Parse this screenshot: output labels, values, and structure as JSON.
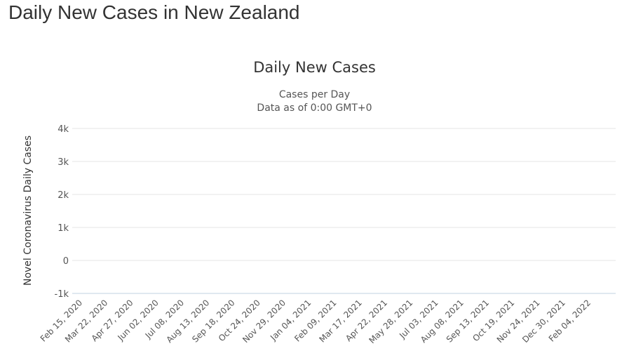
{
  "page": {
    "title": "Daily New Cases in New Zealand"
  },
  "chart_data": {
    "type": "bar",
    "title": "Daily New Cases",
    "subtitle": [
      "Cases per Day",
      "Data as of 0:00 GMT+0"
    ],
    "xlabel": "",
    "ylabel": "Novel Coronavirus Daily Cases",
    "ylim": [
      -1000,
      4000
    ],
    "yticks": [
      -1000,
      0,
      1000,
      2000,
      3000,
      4000
    ],
    "ytick_labels": [
      "-1k",
      "0",
      "1k",
      "2k",
      "3k",
      "4k"
    ],
    "xtick_labels": [
      "Feb 15, 2020",
      "Mar 22, 2020",
      "Apr 27, 2020",
      "Jun 02, 2020",
      "Jul 08, 2020",
      "Aug 13, 2020",
      "Sep 18, 2020",
      "Oct 24, 2020",
      "Nov 29, 2020",
      "Jan 04, 2021",
      "Feb 09, 2021",
      "Mar 17, 2021",
      "Apr 22, 2021",
      "May 28, 2021",
      "Jul 03, 2021",
      "Aug 08, 2021",
      "Sep 13, 2021",
      "Oct 19, 2021",
      "Nov 24, 2021",
      "Dec 30, 2021",
      "Feb 04, 2022"
    ],
    "grid": true,
    "legend": "none",
    "bar_color": "#999999",
    "series": [
      {
        "values": [
          0,
          0,
          0,
          0,
          0,
          0,
          0,
          0,
          0,
          0,
          0,
          0,
          0,
          0,
          0,
          0,
          0,
          0,
          0,
          0,
          0,
          0,
          0,
          0,
          0,
          0,
          0,
          0,
          0,
          0,
          0,
          0,
          0,
          0,
          0,
          0,
          0,
          0,
          0,
          0,
          0,
          0,
          0,
          0,
          0,
          0,
          0,
          0,
          0,
          0,
          0,
          0,
          0,
          0,
          0,
          0,
          0,
          0,
          0,
          0,
          0,
          0,
          0,
          0,
          0,
          0,
          0,
          0,
          0,
          0,
          0,
          0,
          0,
          0,
          0,
          0,
          0,
          0,
          0,
          0,
          0,
          0,
          0,
          0,
          0,
          0,
          0,
          0,
          0,
          0,
          0,
          0,
          0,
          0,
          0,
          0,
          0,
          0,
          0,
          0,
          0,
          0,
          0,
          0,
          0,
          0,
          0,
          0,
          0,
          0,
          0,
          0,
          0,
          0,
          0,
          0,
          0,
          0,
          0,
          0,
          0,
          0,
          0,
          0,
          0,
          0,
          0,
          0,
          0,
          0,
          0,
          0,
          0,
          0,
          0,
          0,
          0,
          0,
          0,
          0,
          0,
          0,
          0,
          0,
          0,
          0,
          0,
          0,
          0,
          0,
          0,
          0,
          0,
          0,
          0,
          0,
          0,
          0,
          0,
          0,
          0,
          0,
          0,
          0,
          0,
          0,
          0,
          0,
          0,
          0,
          0,
          0,
          0,
          0,
          0,
          0,
          0,
          0,
          0,
          0,
          0,
          0,
          0,
          0,
          0,
          0,
          0,
          0,
          0,
          0,
          0,
          0,
          0,
          0,
          0,
          0,
          0,
          0,
          0,
          0,
          0,
          0,
          0,
          0,
          0,
          0,
          0,
          0,
          0,
          0,
          0,
          0,
          0,
          0,
          0,
          0,
          0,
          0,
          0,
          0,
          0,
          0,
          0,
          0,
          0,
          0,
          0,
          0,
          0,
          0,
          0,
          0,
          0,
          0,
          0,
          0,
          0,
          0,
          0,
          0,
          0,
          0,
          0,
          0,
          0,
          0,
          0,
          0,
          0,
          0,
          0,
          0,
          0,
          0,
          0,
          0,
          0,
          0,
          0,
          0,
          0,
          0,
          0,
          0,
          0,
          0,
          0,
          0,
          0,
          0,
          0,
          0,
          0,
          0,
          0,
          0,
          0,
          0,
          0,
          0,
          0,
          0,
          0,
          0,
          0,
          0,
          0,
          0,
          0,
          0,
          0,
          0,
          0,
          0,
          0,
          0,
          0,
          0,
          0,
          0,
          0,
          0,
          0,
          0,
          0,
          0,
          0,
          0,
          0,
          0,
          0,
          0,
          0,
          0,
          0,
          0,
          0,
          0,
          0,
          0,
          0,
          0,
          0,
          0,
          0,
          0,
          0,
          0,
          0,
          0,
          0,
          0,
          0,
          0,
          0,
          0,
          0,
          0,
          0,
          0,
          0,
          0,
          0,
          0,
          0,
          0,
          0,
          0,
          0,
          0,
          0,
          0,
          0,
          0,
          0,
          0,
          0,
          0,
          0,
          0,
          0,
          0,
          0,
          0,
          0,
          0,
          0,
          0,
          0,
          0,
          0,
          0,
          0,
          0,
          0,
          0,
          0,
          0,
          0,
          0,
          0,
          0,
          0,
          0,
          0,
          0,
          0,
          0,
          0,
          0,
          0,
          0,
          0,
          0,
          0,
          0,
          0,
          0,
          0,
          0,
          0,
          0,
          0,
          0,
          0,
          0,
          0,
          0,
          0,
          0,
          0,
          0,
          0,
          0,
          0,
          0,
          0,
          0,
          0,
          0,
          0,
          0,
          0,
          0,
          0,
          0,
          0,
          0,
          0,
          0,
          0,
          0,
          0,
          0,
          0,
          0,
          0,
          0,
          0,
          0,
          0,
          0,
          0,
          0,
          0,
          0,
          0,
          0,
          0,
          0,
          0,
          0,
          0,
          0,
          0,
          0,
          0,
          0,
          0,
          0,
          0,
          0,
          0,
          0,
          0,
          0,
          0,
          0,
          0,
          0,
          0,
          0,
          0,
          0,
          0,
          0,
          0,
          0,
          0,
          0,
          0,
          0,
          0,
          0,
          0,
          0,
          0,
          0,
          0,
          0,
          0,
          0,
          0,
          0,
          0,
          0,
          0,
          0,
          0,
          0,
          0,
          0,
          0,
          0,
          0,
          0,
          0,
          0,
          0,
          0,
          0,
          0,
          0,
          0,
          0,
          0,
          0,
          0,
          0,
          0,
          0,
          0,
          0,
          0,
          0,
          0,
          0,
          0,
          0,
          0,
          0,
          0,
          0,
          0,
          0,
          0,
          0,
          0,
          0,
          0,
          0,
          0,
          0,
          0,
          0,
          0,
          0,
          0,
          0,
          0,
          0,
          0,
          0,
          0,
          0,
          0,
          0,
          0,
          0,
          0,
          0,
          0,
          0,
          0,
          0,
          0,
          0,
          0,
          0,
          0,
          0,
          0,
          0,
          0,
          0,
          0,
          0,
          0,
          0,
          0,
          0,
          0,
          0,
          0,
          0,
          0,
          0,
          0,
          0,
          0,
          0,
          0,
          0,
          0,
          0,
          0,
          0,
          0,
          0,
          0,
          0,
          0,
          0,
          0,
          0,
          0,
          0,
          0,
          0,
          0,
          0,
          0,
          0,
          0,
          0,
          0,
          0,
          0,
          0,
          0,
          0,
          0,
          0,
          0,
          0,
          0,
          0,
          0,
          0,
          0,
          0,
          0,
          0,
          0,
          0,
          0,
          0,
          0,
          0,
          0,
          0,
          0,
          0,
          0,
          0,
          0,
          0,
          0,
          0,
          0,
          0,
          0,
          0,
          0,
          0,
          0,
          0,
          0,
          0,
          0,
          0,
          0,
          0,
          0,
          0,
          0,
          0,
          0,
          0,
          0,
          0,
          0,
          0,
          0,
          0,
          0,
          0,
          0,
          0,
          0,
          0,
          0,
          0,
          0,
          0,
          0,
          0,
          0,
          0,
          0,
          0,
          0,
          0,
          0,
          0,
          0,
          0,
          0,
          0,
          0,
          0,
          0,
          0,
          0,
          0,
          0,
          0,
          0,
          0,
          0,
          0,
          0,
          0,
          0,
          0,
          0,
          0,
          0,
          0,
          0,
          0,
          0,
          0,
          0,
          0,
          0,
          0,
          0,
          0,
          0,
          0,
          0,
          0,
          0,
          0,
          0,
          0,
          0,
          0,
          0,
          0,
          0,
          0,
          0,
          0,
          0,
          0,
          0,
          0,
          0,
          0,
          0,
          0,
          0,
          0,
          0,
          0,
          0,
          0,
          0,
          0,
          0,
          0,
          0,
          0,
          0,
          0,
          0,
          0,
          0,
          0,
          0,
          0,
          0,
          0,
          0,
          0,
          0,
          0,
          0,
          0,
          0,
          0,
          0,
          0,
          0,
          0,
          0,
          0,
          0,
          0,
          0,
          0,
          0,
          0,
          0,
          0,
          0,
          0,
          0,
          0,
          0,
          0,
          0,
          0,
          0,
          0,
          0,
          0,
          0,
          0,
          0,
          0,
          0,
          0,
          0,
          0,
          0,
          0,
          0,
          0,
          0,
          0
        ]
      }
    ]
  }
}
